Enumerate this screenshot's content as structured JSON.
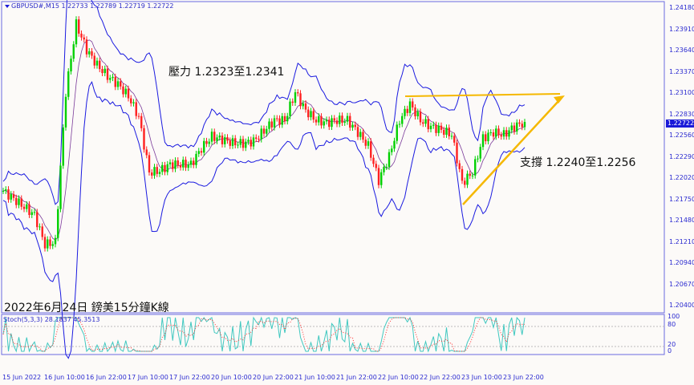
{
  "header": {
    "symbol_ohlc": "GBPUSD#,M15  1.22733 1.22789 1.22719 1.22722"
  },
  "annotations": {
    "resistance": "壓力 1.2323至1.2341",
    "support": "支撐 1.2240至1.2256",
    "caption": "2022年6月24日 鎊美15分鐘K線"
  },
  "indicator": {
    "label": "Stoch(5,3,3) 28.1837 45.3513",
    "levels": [
      "100",
      "80",
      "20",
      "0"
    ]
  },
  "current_price": "1.22722",
  "colors": {
    "up": "#00d000",
    "down": "#ff2020",
    "band": "#1a1ae0",
    "trend": "#f5b800",
    "stoch_main": "#40c8c0",
    "stoch_signal": "#ff3030"
  },
  "chart_data": {
    "type": "candlestick",
    "symbol": "GBPUSD#",
    "timeframe": "M15",
    "ylim": [
      1.2032,
      1.2425
    ],
    "y_ticks": [
      "1.24180",
      "1.23910",
      "1.23640",
      "1.23370",
      "1.23100",
      "1.22830",
      "1.22560",
      "1.22290",
      "1.22020",
      "1.21750",
      "1.21480",
      "1.21210",
      "1.20940",
      "1.20670",
      "1.20400"
    ],
    "x_ticks": [
      "15 Jun 2022",
      "16 Jun 10:00",
      "16 Jun 22:00",
      "17 Jun 10:00",
      "17 Jun 22:00",
      "20 Jun 10:00",
      "20 Jun 22:00",
      "21 Jun 10:00",
      "21 Jun 22:00",
      "22 Jun 10:00",
      "22 Jun 22:00",
      "23 Jun 10:00",
      "23 Jun 22:00"
    ],
    "approx_close_every_3h": [
      1.21857,
      1.21755,
      1.21653,
      1.21551,
      1.21174,
      1.21205,
      1.2311,
      1.23976,
      1.2365,
      1.23457,
      1.23314,
      1.23212,
      1.23059,
      1.22794,
      1.22091,
      1.22112,
      1.22193,
      1.22193,
      1.22193,
      1.22397,
      1.2255,
      1.22509,
      1.22468,
      1.22458,
      1.22489,
      1.22621,
      1.22754,
      1.22754,
      1.2311,
      1.22876,
      1.22754,
      1.22723,
      1.22754,
      1.22754,
      1.22601,
      1.22427,
      1.21989,
      1.22295,
      1.22754,
      1.22957,
      1.22754,
      1.22672,
      1.22631,
      1.2257,
      1.21959,
      1.22091,
      1.22529,
      1.22601,
      1.2257,
      1.22672,
      1.22733
    ],
    "trendlines": [
      {
        "from": 1.2309,
        "to": 1.2312
      },
      {
        "from": 1.2172,
        "to": 1.2306
      }
    ]
  }
}
